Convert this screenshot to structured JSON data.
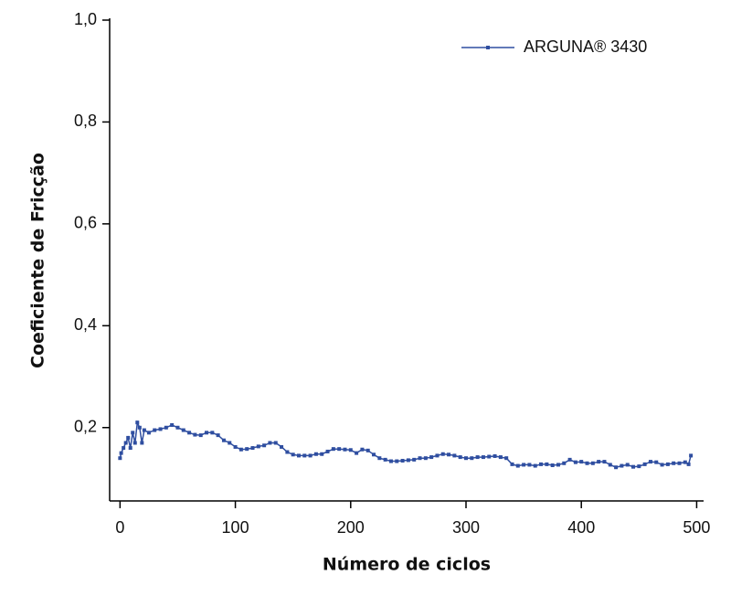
{
  "chart_data": {
    "type": "line",
    "xlabel": "Número de ciclos",
    "ylabel": "Coeficiente de Fricção",
    "x": [
      0,
      1,
      3,
      5,
      7,
      9,
      11,
      13,
      15,
      17,
      19,
      21,
      25,
      30,
      35,
      40,
      45,
      50,
      55,
      60,
      65,
      70,
      75,
      80,
      85,
      90,
      95,
      100,
      105,
      110,
      115,
      120,
      125,
      130,
      135,
      140,
      145,
      150,
      155,
      160,
      165,
      170,
      175,
      180,
      185,
      190,
      195,
      200,
      205,
      210,
      215,
      220,
      225,
      230,
      235,
      240,
      245,
      250,
      255,
      260,
      265,
      270,
      275,
      280,
      285,
      290,
      295,
      300,
      305,
      310,
      315,
      320,
      325,
      330,
      335,
      340,
      345,
      350,
      355,
      360,
      365,
      370,
      375,
      380,
      385,
      390,
      395,
      400,
      405,
      410,
      415,
      420,
      425,
      430,
      435,
      440,
      445,
      450,
      455,
      460,
      465,
      470,
      475,
      480,
      485,
      490,
      493,
      495
    ],
    "series": [
      {
        "name": "ARGUNA® 3430",
        "color": "#2f4ea0",
        "values": [
          0.14,
          0.15,
          0.16,
          0.17,
          0.18,
          0.16,
          0.19,
          0.17,
          0.21,
          0.2,
          0.17,
          0.195,
          0.19,
          0.195,
          0.197,
          0.2,
          0.205,
          0.2,
          0.195,
          0.19,
          0.186,
          0.185,
          0.19,
          0.19,
          0.185,
          0.175,
          0.17,
          0.162,
          0.157,
          0.158,
          0.16,
          0.163,
          0.165,
          0.17,
          0.17,
          0.162,
          0.152,
          0.147,
          0.145,
          0.145,
          0.145,
          0.148,
          0.148,
          0.153,
          0.158,
          0.158,
          0.157,
          0.156,
          0.15,
          0.157,
          0.155,
          0.147,
          0.14,
          0.137,
          0.134,
          0.134,
          0.135,
          0.136,
          0.137,
          0.14,
          0.14,
          0.142,
          0.145,
          0.148,
          0.147,
          0.145,
          0.142,
          0.14,
          0.14,
          0.142,
          0.142,
          0.143,
          0.144,
          0.142,
          0.14,
          0.128,
          0.125,
          0.127,
          0.127,
          0.125,
          0.128,
          0.128,
          0.126,
          0.127,
          0.13,
          0.137,
          0.132,
          0.133,
          0.13,
          0.13,
          0.133,
          0.133,
          0.127,
          0.122,
          0.125,
          0.127,
          0.123,
          0.124,
          0.128,
          0.133,
          0.132,
          0.127,
          0.128,
          0.13,
          0.13,
          0.132,
          0.128,
          0.145
        ]
      }
    ],
    "xlim": [
      -9,
      506
    ],
    "xticks": [
      0,
      100,
      200,
      300,
      400,
      500
    ],
    "ylim": [
      0.056,
      1.0
    ],
    "yticks": [
      {
        "value": 0.2,
        "label": "0,2"
      },
      {
        "value": 0.4,
        "label": "0,4"
      },
      {
        "value": 0.6,
        "label": "0,6"
      },
      {
        "value": 0.8,
        "label": "0,8"
      },
      {
        "value": 1.0,
        "label": "1,0"
      }
    ],
    "legend": "upper right",
    "grid": false
  }
}
